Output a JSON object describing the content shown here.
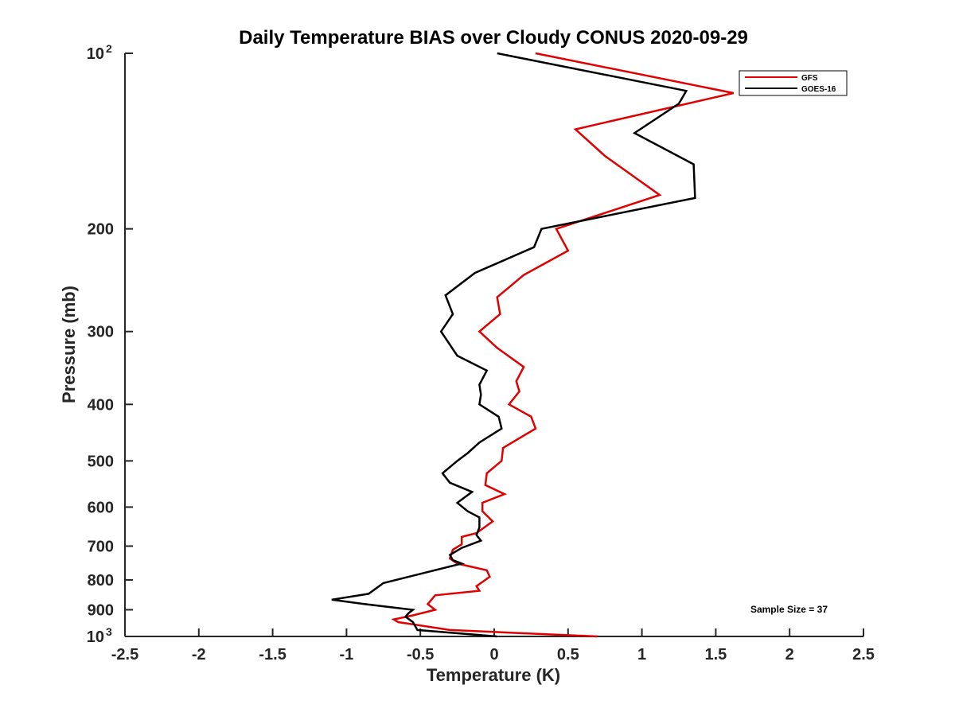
{
  "chart_data": {
    "type": "line",
    "title": "Daily Temperature BIAS over Cloudy CONUS 2020-09-29",
    "xlabel": "Temperature (K)",
    "ylabel": "Pressure (mb)",
    "xlim": [
      -2.5,
      2.5
    ],
    "ylim": [
      100,
      1000
    ],
    "y_scale": "log",
    "y_reversed": true,
    "grid": false,
    "legend_position": "top-right",
    "x_ticks": [
      {
        "value": -2.5,
        "label": "-2.5"
      },
      {
        "value": -2,
        "label": "-2"
      },
      {
        "value": -1.5,
        "label": "-1.5"
      },
      {
        "value": -1,
        "label": "-1"
      },
      {
        "value": -0.5,
        "label": "-0.5"
      },
      {
        "value": 0,
        "label": "0"
      },
      {
        "value": 0.5,
        "label": "0.5"
      },
      {
        "value": 1,
        "label": "1"
      },
      {
        "value": 1.5,
        "label": "1.5"
      },
      {
        "value": 2,
        "label": "2"
      },
      {
        "value": 2.5,
        "label": "2.5"
      }
    ],
    "y_ticks": [
      {
        "value": 100,
        "label": "10",
        "sup": "2"
      },
      {
        "value": 200,
        "label": "200"
      },
      {
        "value": 300,
        "label": "300"
      },
      {
        "value": 400,
        "label": "400"
      },
      {
        "value": 500,
        "label": "500"
      },
      {
        "value": 600,
        "label": "600"
      },
      {
        "value": 700,
        "label": "700"
      },
      {
        "value": 800,
        "label": "800"
      },
      {
        "value": 900,
        "label": "900"
      },
      {
        "value": 1000,
        "label": "10",
        "sup": "3"
      }
    ],
    "series": [
      {
        "name": "GFS",
        "color": "#e00000",
        "points": [
          [
            0.28,
            100
          ],
          [
            1.62,
            117
          ],
          [
            0.55,
            135
          ],
          [
            0.75,
            150
          ],
          [
            1.12,
            175
          ],
          [
            0.42,
            200
          ],
          [
            0.5,
            218
          ],
          [
            0.2,
            240
          ],
          [
            0.02,
            262
          ],
          [
            0.04,
            280
          ],
          [
            -0.1,
            300
          ],
          [
            0.02,
            320
          ],
          [
            0.2,
            345
          ],
          [
            0.15,
            365
          ],
          [
            0.17,
            380
          ],
          [
            0.1,
            400
          ],
          [
            0.25,
            420
          ],
          [
            0.28,
            440
          ],
          [
            0.06,
            475
          ],
          [
            0.05,
            500
          ],
          [
            -0.05,
            525
          ],
          [
            -0.06,
            550
          ],
          [
            0.07,
            570
          ],
          [
            -0.08,
            590
          ],
          [
            -0.08,
            610
          ],
          [
            -0.01,
            635
          ],
          [
            -0.12,
            665
          ],
          [
            -0.22,
            675
          ],
          [
            -0.22,
            695
          ],
          [
            -0.28,
            710
          ],
          [
            -0.3,
            735
          ],
          [
            -0.25,
            750
          ],
          [
            -0.05,
            770
          ],
          [
            -0.03,
            790
          ],
          [
            -0.12,
            820
          ],
          [
            -0.1,
            835
          ],
          [
            -0.4,
            850
          ],
          [
            -0.45,
            880
          ],
          [
            -0.4,
            900
          ],
          [
            -0.55,
            920
          ],
          [
            -0.68,
            935
          ],
          [
            -0.65,
            945
          ],
          [
            -0.3,
            975
          ],
          [
            0.7,
            1000
          ]
        ]
      },
      {
        "name": "GOES-16",
        "color": "#000000",
        "points": [
          [
            0.02,
            100
          ],
          [
            1.3,
            116
          ],
          [
            1.25,
            122
          ],
          [
            0.95,
            137
          ],
          [
            1.35,
            155
          ],
          [
            1.36,
            177
          ],
          [
            0.32,
            200
          ],
          [
            0.27,
            215
          ],
          [
            -0.13,
            238
          ],
          [
            -0.33,
            260
          ],
          [
            -0.28,
            280
          ],
          [
            -0.36,
            300
          ],
          [
            -0.25,
            330
          ],
          [
            -0.05,
            350
          ],
          [
            -0.1,
            370
          ],
          [
            -0.09,
            385
          ],
          [
            -0.1,
            400
          ],
          [
            0.03,
            420
          ],
          [
            0.05,
            440
          ],
          [
            -0.1,
            465
          ],
          [
            -0.18,
            485
          ],
          [
            -0.25,
            500
          ],
          [
            -0.35,
            525
          ],
          [
            -0.3,
            545
          ],
          [
            -0.15,
            565
          ],
          [
            -0.25,
            590
          ],
          [
            -0.18,
            610
          ],
          [
            -0.1,
            625
          ],
          [
            -0.1,
            650
          ],
          [
            -0.12,
            670
          ],
          [
            -0.09,
            685
          ],
          [
            -0.22,
            705
          ],
          [
            -0.3,
            725
          ],
          [
            -0.28,
            740
          ],
          [
            -0.22,
            750
          ],
          [
            -0.75,
            810
          ],
          [
            -0.85,
            845
          ],
          [
            -1.1,
            865
          ],
          [
            -0.88,
            880
          ],
          [
            -0.55,
            900
          ],
          [
            -0.58,
            912
          ],
          [
            -0.6,
            925
          ],
          [
            -0.55,
            945
          ],
          [
            -0.52,
            975
          ],
          [
            0.02,
            1000
          ]
        ]
      }
    ],
    "annotations": [
      {
        "text": "Sample Size = 37",
        "position": "bottom-right"
      }
    ]
  }
}
